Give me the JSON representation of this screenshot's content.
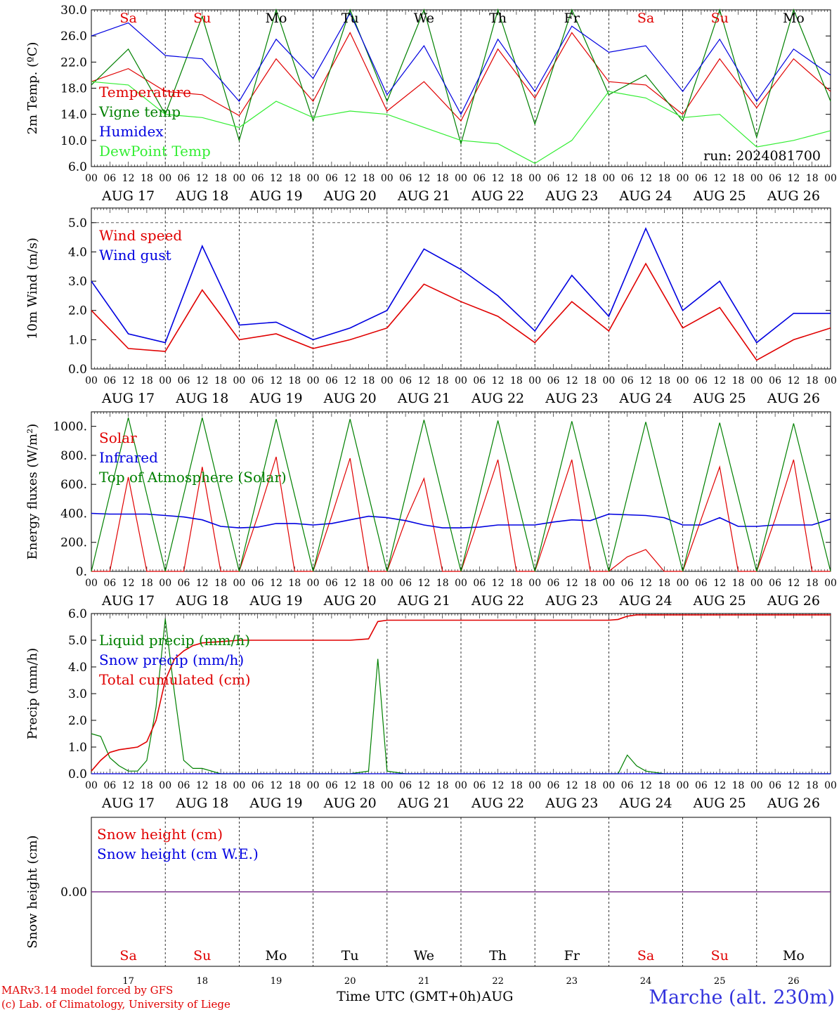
{
  "chart_data": [
    {
      "type": "line",
      "ylabel": "2m Temp. (ºC)",
      "ylim": [
        6.0,
        30.0
      ],
      "yticks": [
        "6.0",
        "10.0",
        "14.0",
        "18.0",
        "22.0",
        "26.0",
        "30.0"
      ],
      "day_labels": [
        "Sa",
        "Su",
        "Mo",
        "Tu",
        "We",
        "Th",
        "Fr",
        "Sa",
        "Su",
        "Mo"
      ],
      "run_label": "run: 2024081700",
      "x_hours": [
        0,
        12,
        24,
        36,
        48,
        60,
        72,
        84,
        96,
        108,
        120,
        132,
        144,
        156,
        168,
        180,
        192,
        204,
        216,
        228,
        240
      ],
      "series": [
        {
          "name": "Temperature",
          "color": "#e00000",
          "values": [
            19.0,
            21.0,
            17.5,
            17.0,
            13.8,
            22.5,
            16.0,
            26.5,
            14.5,
            19.0,
            13.0,
            24.0,
            16.5,
            26.5,
            19.0,
            18.5,
            14.0,
            22.5,
            15.0,
            22.5,
            17.5
          ]
        },
        {
          "name": "Vigne temp",
          "color": "#008000",
          "values": [
            18.5,
            24.0,
            14.0,
            29.0,
            10.0,
            32.0,
            13.0,
            33.0,
            16.0,
            30.0,
            9.5,
            31.0,
            12.5,
            32.0,
            17.0,
            20.0,
            13.0,
            31.0,
            10.5,
            30.0,
            16.0
          ]
        },
        {
          "name": "Humidex",
          "color": "#0000e0",
          "values": [
            26.0,
            28.0,
            23.0,
            22.5,
            16.0,
            25.5,
            19.5,
            29.5,
            17.0,
            24.5,
            14.0,
            25.5,
            17.5,
            27.5,
            23.5,
            24.5,
            17.5,
            25.5,
            16.0,
            24.0,
            20.0
          ]
        },
        {
          "name": "DewPoint Temp",
          "color": "#33ee33",
          "values": [
            19.0,
            18.5,
            14.0,
            13.5,
            12.0,
            16.0,
            13.5,
            14.5,
            14.0,
            12.0,
            10.0,
            9.5,
            6.5,
            10.0,
            17.5,
            16.5,
            13.5,
            14.0,
            9.0,
            10.0,
            11.5
          ]
        }
      ]
    },
    {
      "type": "line",
      "ylabel": "10m Wind (m/s)",
      "ylim": [
        0.0,
        5.5
      ],
      "yticks": [
        "0.0",
        "1.0",
        "2.0",
        "3.0",
        "4.0",
        "5.0"
      ],
      "x_hours": [
        0,
        12,
        24,
        36,
        48,
        60,
        72,
        84,
        96,
        108,
        120,
        132,
        144,
        156,
        168,
        180,
        192,
        204,
        216,
        228,
        240
      ],
      "series": [
        {
          "name": "Wind speed",
          "color": "#e00000",
          "values": [
            2.0,
            0.7,
            0.6,
            2.7,
            1.0,
            1.2,
            0.7,
            1.0,
            1.4,
            2.9,
            2.3,
            1.8,
            0.9,
            2.3,
            1.3,
            3.6,
            1.4,
            2.1,
            0.3,
            1.0,
            1.4
          ]
        },
        {
          "name": "Wind gust",
          "color": "#0000e0",
          "values": [
            3.0,
            1.2,
            0.9,
            4.2,
            1.5,
            1.6,
            1.0,
            1.4,
            2.0,
            4.1,
            3.4,
            2.5,
            1.3,
            3.2,
            1.8,
            4.8,
            2.0,
            3.0,
            0.9,
            1.9,
            1.9
          ]
        }
      ]
    },
    {
      "type": "line",
      "ylabel": "Energy fluxes (W/m²)",
      "ylim": [
        0,
        1100
      ],
      "yticks": [
        "0.",
        "200.",
        "400.",
        "600.",
        "800.",
        "1000."
      ],
      "x_hours": [
        0,
        6,
        12,
        18,
        24,
        30,
        36,
        42,
        48,
        54,
        60,
        66,
        72,
        78,
        84,
        90,
        96,
        102,
        108,
        114,
        120,
        126,
        132,
        138,
        144,
        150,
        156,
        162,
        168,
        174,
        180,
        186,
        192,
        198,
        204,
        210,
        216,
        222,
        228,
        234,
        240
      ],
      "series": [
        {
          "name": "Solar",
          "color": "#e00000",
          "values": [
            0,
            0,
            650,
            0,
            0,
            0,
            720,
            0,
            0,
            380,
            790,
            0,
            0,
            380,
            780,
            0,
            0,
            350,
            640,
            0,
            0,
            380,
            770,
            0,
            0,
            380,
            770,
            0,
            0,
            100,
            150,
            0,
            0,
            360,
            720,
            0,
            0,
            360,
            770,
            0,
            0
          ]
        },
        {
          "name": "Infrared",
          "color": "#0000e0",
          "values": [
            400,
            395,
            395,
            395,
            385,
            375,
            355,
            310,
            300,
            305,
            330,
            330,
            320,
            330,
            355,
            380,
            370,
            350,
            320,
            300,
            300,
            305,
            320,
            320,
            320,
            340,
            355,
            350,
            395,
            390,
            385,
            370,
            320,
            320,
            370,
            310,
            310,
            320,
            320,
            320,
            360
          ]
        },
        {
          "name": "Top of Atmosphere (Solar)",
          "color": "#008000",
          "values": [
            0,
            530,
            1060,
            530,
            0,
            530,
            1060,
            530,
            0,
            525,
            1050,
            525,
            0,
            525,
            1050,
            525,
            0,
            520,
            1045,
            520,
            0,
            520,
            1040,
            520,
            0,
            520,
            1035,
            520,
            0,
            515,
            1030,
            515,
            0,
            515,
            1025,
            515,
            0,
            510,
            1020,
            510,
            0
          ]
        }
      ]
    },
    {
      "type": "line",
      "ylabel": "Precip (mm/h)",
      "ylim": [
        0.0,
        6.0
      ],
      "yticks": [
        "0.0",
        "1.0",
        "2.0",
        "3.0",
        "4.0",
        "5.0",
        "6.0"
      ],
      "x_hours": [
        0,
        3,
        6,
        9,
        12,
        15,
        18,
        21,
        24,
        27,
        30,
        33,
        36,
        42,
        48,
        60,
        72,
        84,
        90,
        93,
        96,
        102,
        108,
        120,
        132,
        144,
        156,
        168,
        171,
        174,
        177,
        180,
        186,
        192,
        204,
        216,
        228,
        240
      ],
      "series": [
        {
          "name": "Liquid precip (mm/h)",
          "color": "#008000",
          "values": [
            1.5,
            1.4,
            0.6,
            0.3,
            0.1,
            0.1,
            0.5,
            2.5,
            5.8,
            3.0,
            0.5,
            0.2,
            0.2,
            0.0,
            0.0,
            0.0,
            0.0,
            0.0,
            0.1,
            4.3,
            0.1,
            0.0,
            0.0,
            0.0,
            0.0,
            0.0,
            0.0,
            0.0,
            0.0,
            0.7,
            0.3,
            0.1,
            0.0,
            0.0,
            0.0,
            0.0,
            0.0,
            0.0
          ]
        },
        {
          "name": "Snow precip (mm/h)",
          "color": "#0000e0",
          "values": [
            0,
            0,
            0,
            0,
            0,
            0,
            0,
            0,
            0,
            0,
            0,
            0,
            0,
            0,
            0,
            0,
            0,
            0,
            0,
            0,
            0,
            0,
            0,
            0,
            0,
            0,
            0,
            0,
            0,
            0,
            0,
            0,
            0,
            0,
            0,
            0,
            0,
            0
          ]
        },
        {
          "name": "Total cumulated (cm)",
          "color": "#e00000",
          "values": [
            0.1,
            0.5,
            0.8,
            0.9,
            0.95,
            1.0,
            1.2,
            2.0,
            3.5,
            4.3,
            4.6,
            4.8,
            4.9,
            4.95,
            5.0,
            5.0,
            5.0,
            5.0,
            5.05,
            5.7,
            5.75,
            5.75,
            5.75,
            5.75,
            5.75,
            5.75,
            5.75,
            5.75,
            5.78,
            5.9,
            5.95,
            5.95,
            5.95,
            5.95,
            5.95,
            5.95,
            5.95,
            5.95
          ]
        }
      ]
    },
    {
      "type": "line",
      "ylabel": "Snow height (cm)",
      "yticks": [
        "0.00"
      ],
      "x_hours": [
        0,
        240
      ],
      "series": [
        {
          "name": "Snow height (cm)",
          "color": "#e00000",
          "values": [
            0.0,
            0.0
          ]
        },
        {
          "name": "Snow height (cm W.E.)",
          "color": "#0000e0",
          "values": [
            0.0,
            0.0
          ]
        }
      ],
      "day_labels": [
        "Sa",
        "Su",
        "Mo",
        "Tu",
        "We",
        "Th",
        "Fr",
        "Sa",
        "Su",
        "Mo"
      ],
      "day_numbers": [
        "17",
        "18",
        "19",
        "20",
        "21",
        "22",
        "23",
        "24",
        "25",
        "26"
      ]
    }
  ],
  "x_axis": {
    "hour_ticks": [
      "00",
      "06",
      "12",
      "18"
    ],
    "date_labels": [
      "AUG 17",
      "AUG 18",
      "AUG 19",
      "AUG 20",
      "AUG 21",
      "AUG 22",
      "AUG 23",
      "AUG 24",
      "AUG 25",
      "AUG 26"
    ],
    "xlabel": "Time UTC (GMT+0h)",
    "month": "AUG"
  },
  "colors": {
    "weekend": "#e00000",
    "weekday": "#000000",
    "station": "#3333dd"
  },
  "footer": {
    "model": "MARv3.14 model forced by GFS",
    "credit": "(c) Lab. of Climatology, University of Liege",
    "station": "Marche (alt. 230m)"
  }
}
